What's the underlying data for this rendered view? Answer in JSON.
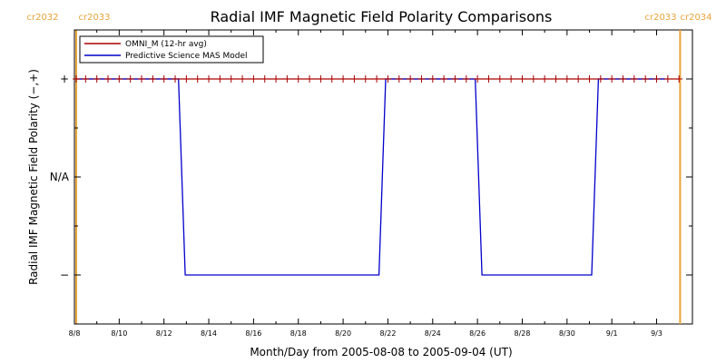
{
  "chart_data": {
    "type": "line",
    "title": "Radial IMF Magnetic Field Polarity Comparisons",
    "xlabel": "Month/Day from 2005-08-08 to 2005-09-04 (UT)",
    "ylabel": "Radial IMF Magnetic Field Polarity (−,+)",
    "x_unit": "days",
    "xlim": [
      0,
      27.6
    ],
    "ylim": [
      -1.5,
      1.5
    ],
    "x_tick_positions": [
      0,
      2,
      4,
      6,
      8,
      10,
      12,
      14,
      16,
      18,
      20,
      22,
      24,
      26
    ],
    "x_tick_labels": [
      "8/8",
      "8/10",
      "8/12",
      "8/14",
      "8/16",
      "8/18",
      "8/20",
      "8/22",
      "8/24",
      "8/26",
      "8/28",
      "8/30",
      "9/1",
      "9/3"
    ],
    "y_tick_values": [
      1,
      0,
      -1
    ],
    "y_tick_labels": [
      "+",
      "N/A",
      "−"
    ],
    "carrington": [
      {
        "x": 0.08,
        "left_label": "cr2032",
        "right_label": "cr2033"
      },
      {
        "x": 27.05,
        "left_label": "cr2033",
        "right_label": "cr2034"
      }
    ],
    "legend_position": "top-left",
    "series": [
      {
        "name": "OMNI_M (12-hr avg)",
        "color": "#aa0000",
        "marker": "+",
        "x": [
          0.08,
          0.5,
          1.0,
          1.5,
          2.0,
          2.5,
          3.0,
          3.5,
          4.0,
          4.5,
          5.0,
          5.5,
          6.0,
          6.5,
          7.0,
          7.5,
          8.0,
          8.5,
          9.0,
          9.5,
          10.0,
          10.5,
          11.0,
          11.5,
          12.0,
          12.5,
          13.0,
          13.5,
          14.0,
          14.5,
          15.0,
          15.5,
          16.0,
          16.5,
          17.0,
          17.5,
          18.0,
          18.5,
          19.0,
          19.5,
          20.0,
          20.5,
          21.0,
          21.5,
          22.0,
          22.5,
          23.0,
          23.5,
          24.0,
          24.5,
          25.0,
          25.5,
          26.0,
          26.5,
          27.0
        ],
        "y": [
          1,
          1,
          1,
          1,
          1,
          1,
          1,
          1,
          1,
          1,
          1,
          1,
          1,
          1,
          1,
          1,
          1,
          1,
          1,
          1,
          1,
          1,
          1,
          1,
          1,
          1,
          1,
          1,
          1,
          1,
          1,
          1,
          1,
          1,
          1,
          1,
          1,
          1,
          1,
          1,
          1,
          1,
          1,
          1,
          1,
          1,
          1,
          1,
          1,
          1,
          1,
          1,
          1,
          1,
          1
        ]
      },
      {
        "name": "Predictive Science MAS Model",
        "color": "#0000cc",
        "marker": "none",
        "x": [
          0.08,
          4.65,
          4.95,
          13.6,
          13.9,
          17.9,
          18.2,
          23.1,
          23.4,
          26.4
        ],
        "y": [
          1,
          1,
          -1,
          -1,
          1,
          1,
          -1,
          -1,
          1,
          1
        ]
      }
    ]
  }
}
